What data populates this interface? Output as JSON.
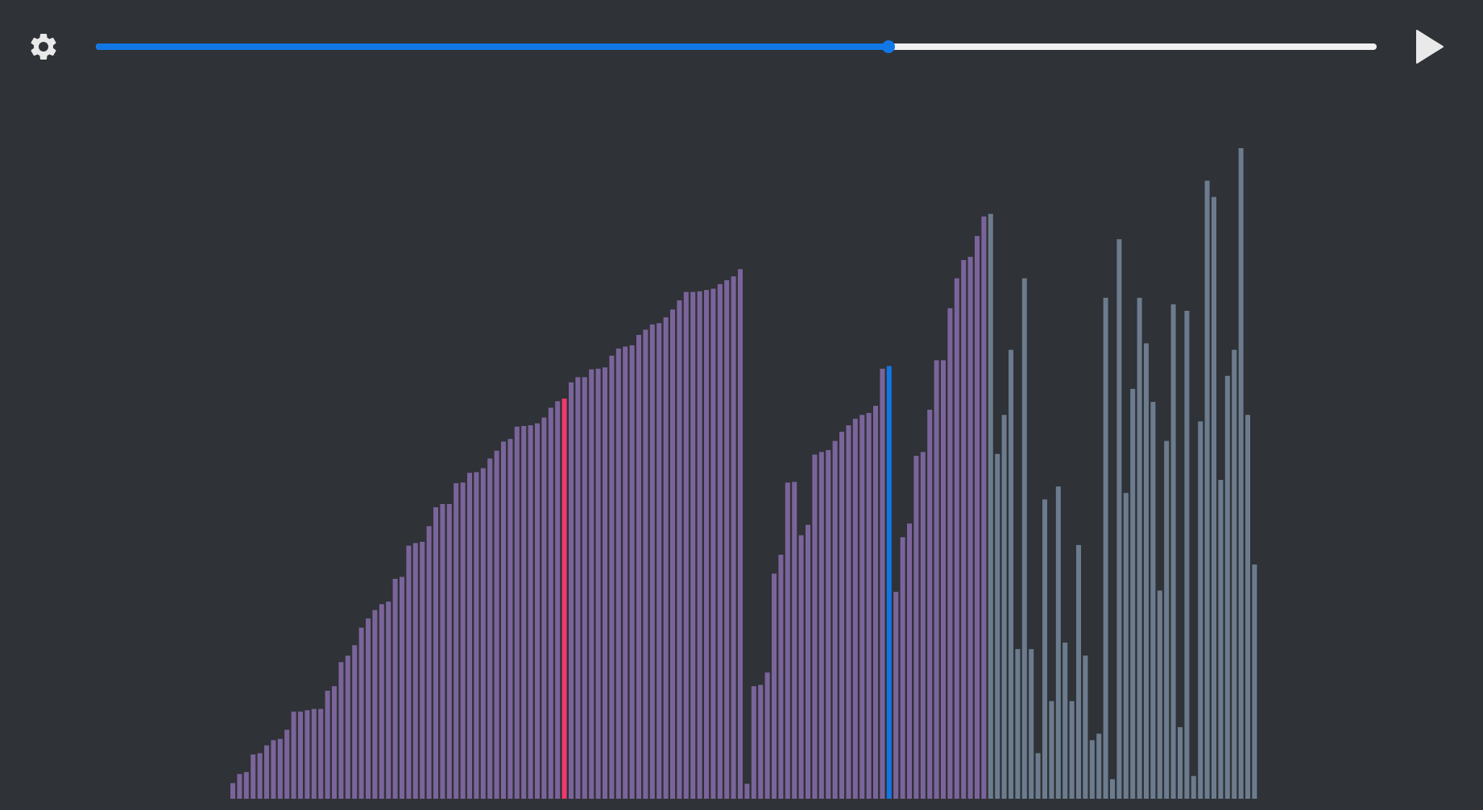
{
  "icons": {
    "settings": "gear-icon",
    "play": "play-icon"
  },
  "colors": {
    "background": "#2f3236",
    "accent": "#1177e6",
    "track": "#f1f1f1",
    "sorted_bar": "#7b649b",
    "unsorted_bar": "#6c7c8e",
    "compare_bar": "#ee3a6e",
    "current_bar": "#1177e6"
  },
  "progress": {
    "fraction": 0.619
  },
  "chart_data": {
    "type": "bar",
    "value_max": 100,
    "sorted_runs_end_index": 112,
    "highlight_compare_index": 49,
    "highlight_current_index": 97,
    "values": [
      2.4,
      3.8,
      4.1,
      6.8,
      7.0,
      8.2,
      9.0,
      9.2,
      10.6,
      13.4,
      13.4,
      13.6,
      13.8,
      13.8,
      16.6,
      17.3,
      21.0,
      22.0,
      23.6,
      26.3,
      27.7,
      29.0,
      29.9,
      30.3,
      33.8,
      34.1,
      38.9,
      39.3,
      39.5,
      41.9,
      44.8,
      45.3,
      45.3,
      48.5,
      48.6,
      50.1,
      50.2,
      50.8,
      52.3,
      53.5,
      54.9,
      55.3,
      57.2,
      57.3,
      57.4,
      57.7,
      58.6,
      60.1,
      61.1,
      61.5,
      64.0,
      64.8,
      64.8,
      66.0,
      66.1,
      66.3,
      68.1,
      69.2,
      69.5,
      69.7,
      71.3,
      72.1,
      72.9,
      73.1,
      74.0,
      75.2,
      76.6,
      77.9,
      77.9,
      78.0,
      78.2,
      78.4,
      79.1,
      79.7,
      80.3,
      81.4,
      2.3,
      17.3,
      17.5,
      19.4,
      34.6,
      37.5,
      48.6,
      48.7,
      40.5,
      42.1,
      52.9,
      53.3,
      53.6,
      55.0,
      56.4,
      57.4,
      58.4,
      59.0,
      59.3,
      60.4,
      66.1,
      66.5,
      31.8,
      40.2,
      42.3,
      52.7,
      53.3,
      59.8,
      67.4,
      67.4,
      75.4,
      80.0,
      82.8,
      83.3,
      86.5,
      89.5,
      89.9,
      53.0,
      59.0,
      69.0,
      23.0,
      80.0,
      23.0,
      7.0,
      46.0,
      15.0,
      48.0,
      24.0,
      15.0,
      39.0,
      22.0,
      9.0,
      10.0,
      77.0,
      3.0,
      86.0,
      47.0,
      63.0,
      77.0,
      70.0,
      61.0,
      32.0,
      55.0,
      76.0,
      11.0,
      75.0,
      3.5,
      58.0,
      95.0,
      92.5,
      49.0,
      65.0,
      69.0,
      100.0,
      59.0,
      36.0
    ]
  }
}
